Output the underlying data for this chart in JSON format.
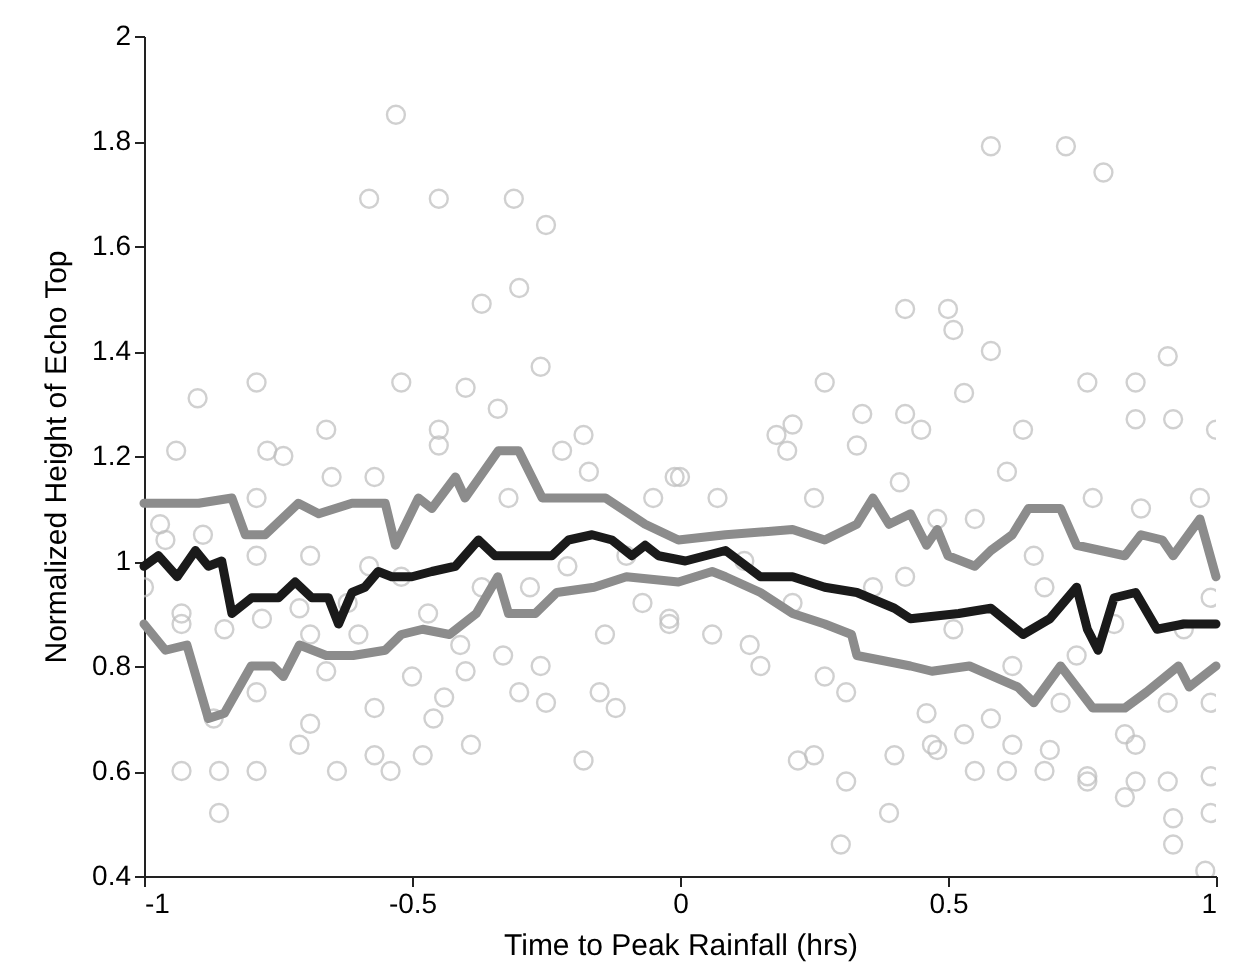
{
  "chart_data": {
    "type": "scatter",
    "xlabel": "Time to Peak Rainfall (hrs)",
    "ylabel": "Normalized Height of Echo Top",
    "xlim": [
      -1,
      1
    ],
    "xticks": [
      -1,
      -0.5,
      0,
      0.5,
      1
    ],
    "ylim": [
      0.4,
      2
    ],
    "yticks": [
      0.4,
      0.6,
      0.8,
      1,
      1.2,
      1.4,
      1.6,
      1.8,
      2
    ],
    "series": [
      {
        "marker": "circle",
        "color": "#bdbdbd",
        "x": [
          -0.9,
          -0.79,
          -0.58,
          -0.53,
          -0.45,
          -0.31,
          -0.25,
          -0.3,
          -0.37,
          -0.52,
          -0.4,
          -0.26,
          -0.34,
          -0.66,
          -0.45,
          -0.18,
          0.58,
          0.72,
          0.79,
          0.42,
          0.5,
          0.51,
          0.58,
          0.91,
          0.27,
          0.53,
          0.76,
          0.85,
          0.18,
          0.21,
          0.34,
          0.42,
          0.45,
          0.64,
          0.85,
          0.92,
          1.0,
          -0.86,
          -0.93,
          -0.86,
          -0.79,
          -0.87,
          -0.64,
          -0.57,
          -0.54,
          -0.48,
          -0.39,
          -0.18,
          -0.71,
          -0.69,
          -0.57,
          -0.46,
          -0.3,
          -0.25,
          -0.15,
          -0.12,
          -0.79,
          0.3,
          0.39,
          0.31,
          0.22,
          0.25,
          0.4,
          0.47,
          0.48,
          0.55,
          0.61,
          0.62,
          0.69,
          0.68,
          0.76,
          0.76,
          0.83,
          0.85,
          0.85,
          0.91,
          0.92,
          0.92,
          0.99,
          0.99,
          0.98,
          0.53,
          -1.0,
          -0.94,
          -0.97,
          -0.96,
          -0.93,
          -0.93,
          -0.89,
          -0.85,
          -0.79,
          -0.79,
          -0.78,
          -0.77,
          -0.74,
          -0.71,
          -0.69,
          -0.69,
          -0.66,
          -0.65,
          -0.62,
          -0.6,
          -0.58,
          -0.57,
          -0.52,
          -0.5,
          -0.47,
          -0.45,
          -0.44,
          -0.41,
          -0.4,
          -0.37,
          -0.33,
          -0.32,
          -0.28,
          -0.26,
          -0.22,
          -0.21,
          -0.17,
          -0.14,
          -0.1,
          -0.07,
          -0.05,
          -0.02,
          -0.01,
          0.0,
          -0.02,
          0.06,
          0.07,
          0.12,
          0.13,
          0.15,
          0.2,
          0.21,
          0.25,
          0.27,
          0.31,
          0.33,
          0.36,
          0.41,
          0.42,
          0.46,
          0.48,
          0.51,
          0.55,
          0.58,
          0.61,
          0.62,
          0.66,
          0.68,
          0.71,
          0.74,
          0.77,
          0.81,
          0.83,
          0.86,
          0.91,
          0.94,
          0.97,
          0.99,
          0.99
        ],
        "values": [
          1.31,
          1.34,
          1.69,
          1.85,
          1.69,
          1.69,
          1.64,
          1.52,
          1.49,
          1.34,
          1.33,
          1.37,
          1.29,
          1.25,
          1.25,
          1.24,
          1.79,
          1.79,
          1.74,
          1.48,
          1.48,
          1.44,
          1.4,
          1.39,
          1.34,
          1.32,
          1.34,
          1.34,
          1.24,
          1.26,
          1.28,
          1.28,
          1.25,
          1.25,
          1.27,
          1.27,
          1.25,
          0.52,
          0.6,
          0.6,
          0.6,
          0.7,
          0.6,
          0.63,
          0.6,
          0.63,
          0.65,
          0.62,
          0.65,
          0.69,
          0.72,
          0.7,
          0.75,
          0.73,
          0.75,
          0.72,
          0.75,
          0.46,
          0.52,
          0.58,
          0.62,
          0.63,
          0.63,
          0.65,
          0.64,
          0.6,
          0.6,
          0.65,
          0.64,
          0.6,
          0.59,
          0.58,
          0.55,
          0.58,
          0.65,
          0.58,
          0.51,
          0.46,
          0.52,
          0.59,
          0.41,
          0.67,
          0.95,
          1.21,
          1.07,
          1.04,
          0.9,
          0.88,
          1.05,
          0.87,
          1.12,
          1.01,
          0.89,
          1.21,
          1.2,
          0.91,
          0.86,
          1.01,
          0.79,
          1.16,
          0.92,
          0.86,
          0.99,
          1.16,
          0.97,
          0.78,
          0.9,
          1.22,
          0.74,
          0.84,
          0.79,
          0.95,
          0.82,
          1.12,
          0.95,
          0.8,
          1.21,
          0.99,
          1.17,
          0.86,
          1.01,
          0.92,
          1.12,
          0.89,
          1.16,
          1.16,
          0.88,
          0.86,
          1.12,
          1.0,
          0.84,
          0.8,
          1.21,
          0.92,
          1.12,
          0.78,
          0.75,
          1.22,
          0.95,
          1.15,
          0.97,
          0.71,
          1.08,
          0.87,
          1.08,
          0.7,
          1.17,
          0.8,
          1.01,
          0.95,
          0.73,
          0.82,
          1.12,
          0.88,
          0.67,
          1.1,
          0.73,
          0.87,
          1.12,
          0.73,
          0.93
        ]
      },
      {
        "type": "line",
        "marker": "none",
        "color": "#8c8c8c",
        "x": [
          -1.0,
          -0.898,
          -0.836,
          -0.811,
          -0.774,
          -0.712,
          -0.674,
          -0.612,
          -0.55,
          -0.531,
          -0.488,
          -0.463,
          -0.419,
          -0.401,
          -0.339,
          -0.301,
          -0.257,
          -0.139,
          -0.065,
          -0.003,
          0.085,
          0.21,
          0.27,
          0.33,
          0.36,
          0.39,
          0.43,
          0.46,
          0.48,
          0.5,
          0.55,
          0.58,
          0.62,
          0.65,
          0.71,
          0.74,
          0.83,
          0.86,
          0.9,
          0.92,
          0.97,
          1.0
        ],
        "values": [
          1.11,
          1.11,
          1.12,
          1.05,
          1.05,
          1.11,
          1.09,
          1.11,
          1.11,
          1.03,
          1.12,
          1.1,
          1.16,
          1.12,
          1.21,
          1.21,
          1.12,
          1.12,
          1.07,
          1.04,
          1.05,
          1.06,
          1.04,
          1.07,
          1.12,
          1.07,
          1.09,
          1.03,
          1.06,
          1.01,
          0.99,
          1.02,
          1.05,
          1.1,
          1.1,
          1.03,
          1.01,
          1.05,
          1.04,
          1.01,
          1.08,
          0.97
        ]
      },
      {
        "type": "line",
        "marker": "none",
        "color": "#8c8c8c",
        "x": [
          -1.0,
          -0.96,
          -0.92,
          -0.88,
          -0.85,
          -0.8,
          -0.76,
          -0.74,
          -0.71,
          -0.66,
          -0.61,
          -0.55,
          -0.52,
          -0.48,
          -0.43,
          -0.38,
          -0.34,
          -0.32,
          -0.27,
          -0.23,
          -0.16,
          -0.1,
          -0.003,
          0.06,
          0.085,
          0.15,
          0.21,
          0.27,
          0.32,
          0.33,
          0.43,
          0.47,
          0.54,
          0.63,
          0.66,
          0.71,
          0.77,
          0.83,
          0.87,
          0.93,
          0.95,
          1.0
        ],
        "values": [
          0.88,
          0.83,
          0.84,
          0.7,
          0.71,
          0.8,
          0.8,
          0.78,
          0.84,
          0.82,
          0.82,
          0.83,
          0.86,
          0.87,
          0.86,
          0.9,
          0.97,
          0.9,
          0.9,
          0.94,
          0.95,
          0.97,
          0.96,
          0.98,
          0.97,
          0.94,
          0.9,
          0.88,
          0.86,
          0.82,
          0.8,
          0.79,
          0.8,
          0.76,
          0.73,
          0.8,
          0.72,
          0.72,
          0.75,
          0.8,
          0.76,
          0.8
        ]
      },
      {
        "type": "line",
        "marker": "none",
        "color": "#1a1a1a",
        "x": [
          -1.0,
          -0.973,
          -0.938,
          -0.904,
          -0.88,
          -0.855,
          -0.836,
          -0.799,
          -0.749,
          -0.718,
          -0.687,
          -0.656,
          -0.637,
          -0.612,
          -0.588,
          -0.563,
          -0.538,
          -0.5,
          -0.463,
          -0.419,
          -0.376,
          -0.345,
          -0.289,
          -0.239,
          -0.208,
          -0.164,
          -0.127,
          -0.09,
          -0.065,
          -0.04,
          0.01,
          0.085,
          0.15,
          0.21,
          0.27,
          0.33,
          0.4,
          0.43,
          0.52,
          0.58,
          0.64,
          0.69,
          0.74,
          0.76,
          0.78,
          0.81,
          0.85,
          0.89,
          0.94,
          1.0
        ],
        "values": [
          0.99,
          1.01,
          0.97,
          1.02,
          0.99,
          1.0,
          0.9,
          0.93,
          0.93,
          0.96,
          0.93,
          0.93,
          0.88,
          0.94,
          0.95,
          0.98,
          0.97,
          0.97,
          0.98,
          0.99,
          1.04,
          1.01,
          1.01,
          1.01,
          1.04,
          1.05,
          1.04,
          1.01,
          1.03,
          1.01,
          1.0,
          1.02,
          0.97,
          0.97,
          0.95,
          0.94,
          0.91,
          0.89,
          0.9,
          0.91,
          0.86,
          0.89,
          0.95,
          0.87,
          0.83,
          0.93,
          0.94,
          0.87,
          0.88,
          0.88
        ]
      }
    ]
  }
}
